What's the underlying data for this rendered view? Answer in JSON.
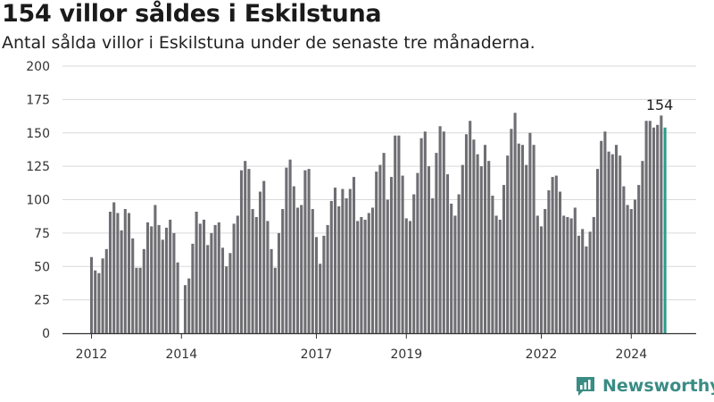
{
  "title": "154 villor såldes i Eskilstuna",
  "subtitle": "Antal sålda villor i Eskilstuna under de senaste tre månaderna.",
  "logo_text": "Newsworthy",
  "colors": {
    "bar": "#6e6e73",
    "highlight": "#2a9d8f",
    "grid": "#d9d9d9",
    "axis": "#333333",
    "logo": "#3a8c84"
  },
  "chart_data": {
    "type": "bar",
    "title": "154 villor såldes i Eskilstuna",
    "subtitle": "Antal sålda villor i Eskilstuna under de senaste tre månaderna.",
    "xlabel": "",
    "ylabel": "",
    "ylim": [
      0,
      200
    ],
    "yticks": [
      0,
      25,
      50,
      75,
      100,
      125,
      150,
      175,
      200
    ],
    "grid": true,
    "start": "2012-01",
    "xtick_labels": [
      "2012",
      "2014",
      "2017",
      "2019",
      "2022",
      "2024"
    ],
    "xtick_indices": [
      0,
      24,
      60,
      84,
      120,
      144
    ],
    "highlight_label": "154",
    "values": [
      57,
      47,
      45,
      56,
      63,
      91,
      98,
      90,
      77,
      93,
      90,
      71,
      49,
      49,
      63,
      83,
      80,
      96,
      81,
      70,
      79,
      85,
      75,
      53,
      0,
      36,
      41,
      67,
      91,
      82,
      85,
      66,
      75,
      81,
      83,
      64,
      50,
      60,
      82,
      88,
      122,
      129,
      123,
      93,
      87,
      106,
      114,
      84,
      63,
      49,
      75,
      93,
      124,
      130,
      110,
      94,
      96,
      122,
      123,
      93,
      72,
      52,
      73,
      81,
      99,
      109,
      95,
      108,
      101,
      108,
      117,
      84,
      87,
      85,
      90,
      94,
      121,
      126,
      135,
      100,
      117,
      148,
      148,
      118,
      86,
      84,
      104,
      120,
      146,
      151,
      125,
      101,
      135,
      155,
      151,
      119,
      97,
      88,
      104,
      126,
      149,
      159,
      145,
      134,
      125,
      141,
      129,
      103,
      88,
      85,
      111,
      133,
      153,
      165,
      142,
      141,
      126,
      150,
      141,
      88,
      80,
      93,
      107,
      117,
      118,
      106,
      88,
      87,
      86,
      94,
      73,
      78,
      65,
      76,
      87,
      123,
      144,
      151,
      136,
      134,
      141,
      133,
      110,
      96,
      93,
      100,
      111,
      129,
      159,
      159,
      154,
      156,
      163,
      154
    ]
  }
}
